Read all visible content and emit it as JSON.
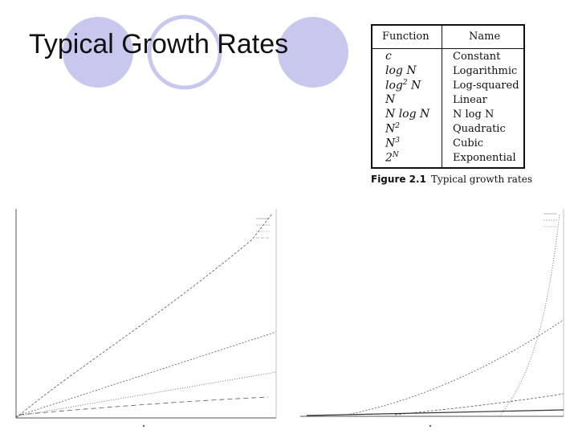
{
  "title": "Typical Growth Rates",
  "table": {
    "headers": {
      "function": "Function",
      "name": "Name"
    },
    "rows": [
      {
        "function": "c",
        "sup": "",
        "tail": "",
        "name": "Constant"
      },
      {
        "function": "log N",
        "sup": "",
        "tail": "",
        "name": "Logarithmic"
      },
      {
        "function": "log",
        "sup": "2",
        "tail": " N",
        "name": "Log-squared"
      },
      {
        "function": "N",
        "sup": "",
        "tail": "",
        "name": "Linear"
      },
      {
        "function": "N log N",
        "sup": "",
        "tail": "",
        "name": "N log N"
      },
      {
        "function": "N",
        "sup": "2",
        "tail": "",
        "name": "Quadratic"
      },
      {
        "function": "N",
        "sup": "3",
        "tail": "",
        "name": "Cubic"
      },
      {
        "function": "2",
        "sup": "N",
        "tail": "",
        "name": "Exponential"
      }
    ],
    "caption_label": "Figure 2.1",
    "caption_text": "Typical growth rates"
  },
  "colors": {
    "circle": "#c8c8ee",
    "ink": "#111111"
  }
}
